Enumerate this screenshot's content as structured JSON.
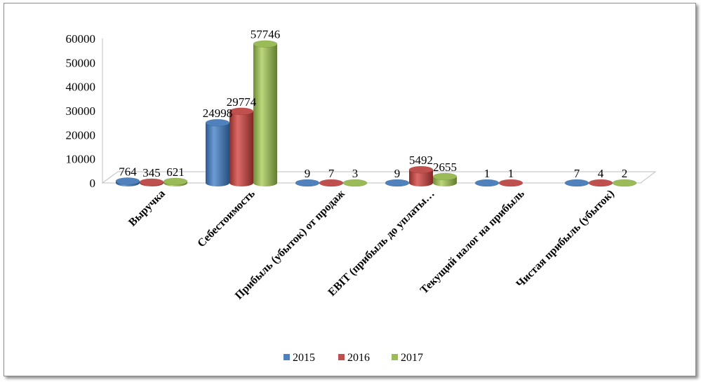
{
  "chart_data": {
    "type": "bar",
    "categories": [
      "Выручка",
      "Себестоимость",
      "Прибыль (убыток) от продаж",
      "EBIT (прибыль до уплаты…",
      "Текущий налог на прибыль",
      "Чистая прибыль (убыток)"
    ],
    "series": [
      {
        "name": "2015",
        "values": [
          764,
          24998,
          9,
          9,
          1,
          7
        ],
        "labels": [
          "764",
          "24998",
          "9",
          "9",
          "1",
          "7"
        ]
      },
      {
        "name": "2016",
        "values": [
          345,
          29774,
          7,
          5492,
          1,
          4
        ],
        "labels": [
          "345",
          "29774",
          "7",
          "5492",
          "1",
          "4"
        ]
      },
      {
        "name": "2017",
        "values": [
          621,
          57746,
          3,
          2655,
          null,
          2
        ],
        "labels": [
          "621",
          "57746",
          "3",
          "2655",
          "",
          "2"
        ]
      }
    ],
    "colors": [
      "#4f81bd",
      "#c0504d",
      "#9bbb59"
    ],
    "yticks": [
      "0",
      "10000",
      "20000",
      "30000",
      "40000",
      "50000",
      "60000"
    ],
    "ylim": [
      0,
      60000
    ],
    "legend_position": "bottom",
    "style": "3d-cylinder"
  }
}
